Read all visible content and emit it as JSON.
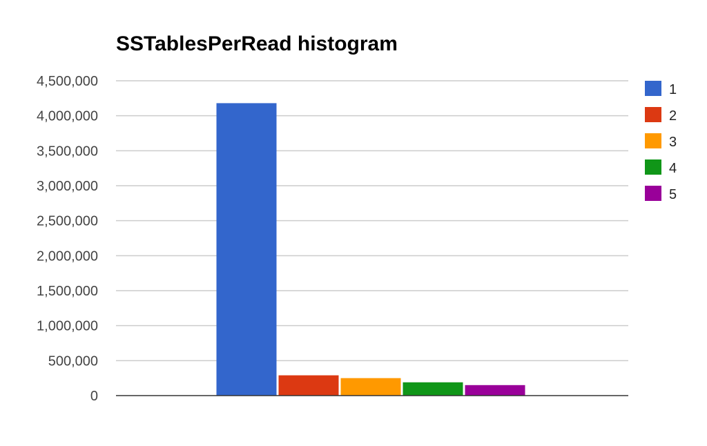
{
  "chart_data": {
    "type": "bar",
    "title": "SSTablesPerRead histogram",
    "xlabel": "",
    "ylabel": "",
    "categories": [
      ""
    ],
    "series": [
      {
        "name": "1",
        "color": "#3366cc",
        "values": [
          4180000
        ]
      },
      {
        "name": "2",
        "color": "#dc3912",
        "values": [
          290000
        ]
      },
      {
        "name": "3",
        "color": "#ff9900",
        "values": [
          250000
        ]
      },
      {
        "name": "4",
        "color": "#109618",
        "values": [
          190000
        ]
      },
      {
        "name": "5",
        "color": "#990099",
        "values": [
          150000
        ]
      }
    ],
    "ylim": [
      0,
      4500000
    ],
    "yticks": [
      {
        "value": 0,
        "label": "0"
      },
      {
        "value": 500000,
        "label": "500,000"
      },
      {
        "value": 1000000,
        "label": "1,000,000"
      },
      {
        "value": 1500000,
        "label": "1,500,000"
      },
      {
        "value": 2000000,
        "label": "2,000,000"
      },
      {
        "value": 2500000,
        "label": "2,500,000"
      },
      {
        "value": 3000000,
        "label": "3,000,000"
      },
      {
        "value": 3500000,
        "label": "3,500,000"
      },
      {
        "value": 4000000,
        "label": "4,000,000"
      },
      {
        "value": 4500000,
        "label": "4,500,000"
      }
    ],
    "grid": true,
    "legend_position": "right"
  }
}
